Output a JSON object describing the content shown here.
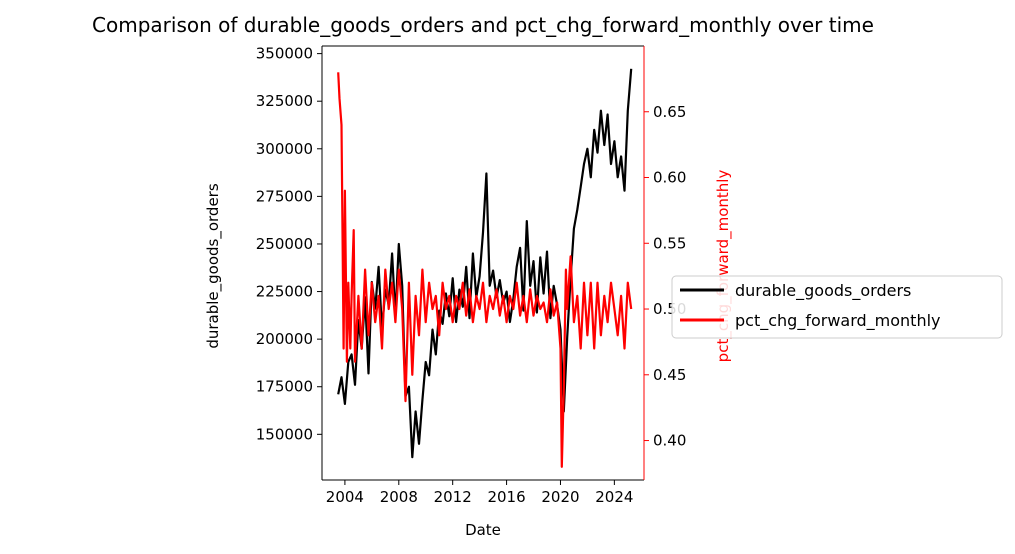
{
  "chart_data": {
    "type": "line",
    "title": "Comparison of durable_goods_orders and pct_chg_forward_monthly over time",
    "xlabel": "Date",
    "ylabel_left": "durable_goods_orders",
    "ylabel_right": "pct_chg_forward_monthly",
    "x_ticks": [
      "2004",
      "2008",
      "2012",
      "2016",
      "2020",
      "2024"
    ],
    "y_left_ticks": [
      "150000",
      "175000",
      "200000",
      "225000",
      "250000",
      "275000",
      "300000",
      "325000",
      "350000"
    ],
    "y_right_ticks": [
      "0.40",
      "0.45",
      "0.50",
      "0.55",
      "0.60",
      "0.65"
    ],
    "x_range": [
      2002.3,
      2026.2
    ],
    "y_left_range": [
      126000,
      354000
    ],
    "y_right_range": [
      0.37,
      0.7
    ],
    "legend_position": "center-right outside",
    "grid": false,
    "colors": {
      "durable_goods_orders": "#000000",
      "pct_chg_forward_monthly": "#ff0000",
      "right_axis": "#ff0000"
    },
    "series": [
      {
        "name": "durable_goods_orders",
        "axis": "left",
        "color": "#000000",
        "x": [
          2003.5,
          2003.75,
          2004.0,
          2004.25,
          2004.5,
          2004.75,
          2005.0,
          2005.25,
          2005.5,
          2005.75,
          2006.0,
          2006.25,
          2006.5,
          2006.75,
          2007.0,
          2007.25,
          2007.5,
          2007.75,
          2008.0,
          2008.25,
          2008.5,
          2008.75,
          2009.0,
          2009.25,
          2009.5,
          2009.75,
          2010.0,
          2010.25,
          2010.5,
          2010.75,
          2011.0,
          2011.25,
          2011.5,
          2011.75,
          2012.0,
          2012.25,
          2012.5,
          2012.75,
          2013.0,
          2013.25,
          2013.5,
          2013.75,
          2014.0,
          2014.25,
          2014.5,
          2014.75,
          2015.0,
          2015.25,
          2015.5,
          2015.75,
          2016.0,
          2016.25,
          2016.5,
          2016.75,
          2017.0,
          2017.25,
          2017.5,
          2017.75,
          2018.0,
          2018.25,
          2018.5,
          2018.75,
          2019.0,
          2019.25,
          2019.5,
          2019.75,
          2020.0,
          2020.25,
          2020.5,
          2020.75,
          2021.0,
          2021.25,
          2021.5,
          2021.75,
          2022.0,
          2022.25,
          2022.5,
          2022.75,
          2023.0,
          2023.25,
          2023.5,
          2023.75,
          2024.0,
          2024.25,
          2024.5,
          2024.75,
          2025.0,
          2025.25
        ],
        "values": [
          171000,
          180000,
          166000,
          188000,
          192000,
          176000,
          210000,
          195000,
          222000,
          182000,
          230000,
          216000,
          238000,
          205000,
          226000,
          218000,
          245000,
          212000,
          250000,
          228000,
          170000,
          175000,
          138000,
          162000,
          145000,
          168000,
          188000,
          181000,
          205000,
          192000,
          215000,
          208000,
          224000,
          212000,
          232000,
          209000,
          226000,
          217000,
          238000,
          211000,
          245000,
          222000,
          233000,
          256000,
          287000,
          228000,
          236000,
          222000,
          231000,
          219000,
          225000,
          209000,
          221000,
          238000,
          248000,
          215000,
          262000,
          228000,
          241000,
          214000,
          243000,
          224000,
          246000,
          211000,
          228000,
          218000,
          205000,
          162000,
          201000,
          232000,
          258000,
          268000,
          280000,
          292000,
          300000,
          285000,
          310000,
          298000,
          320000,
          302000,
          318000,
          292000,
          304000,
          285000,
          296000,
          278000,
          320000,
          342000
        ]
      },
      {
        "name": "pct_chg_forward_monthly",
        "axis": "right",
        "color": "#ff0000",
        "x": [
          2003.5,
          2003.6,
          2003.75,
          2003.9,
          2004.0,
          2004.15,
          2004.25,
          2004.4,
          2004.5,
          2004.65,
          2004.75,
          2005.0,
          2005.25,
          2005.5,
          2005.75,
          2006.0,
          2006.25,
          2006.5,
          2006.75,
          2007.0,
          2007.25,
          2007.5,
          2007.75,
          2008.0,
          2008.25,
          2008.5,
          2008.75,
          2009.0,
          2009.25,
          2009.5,
          2009.75,
          2010.0,
          2010.25,
          2010.5,
          2010.75,
          2011.0,
          2011.25,
          2011.5,
          2011.75,
          2012.0,
          2012.25,
          2012.5,
          2012.75,
          2013.0,
          2013.25,
          2013.5,
          2013.75,
          2014.0,
          2014.25,
          2014.5,
          2014.75,
          2015.0,
          2015.25,
          2015.5,
          2015.75,
          2016.0,
          2016.25,
          2016.5,
          2016.75,
          2017.0,
          2017.25,
          2017.5,
          2017.75,
          2018.0,
          2018.25,
          2018.5,
          2018.75,
          2019.0,
          2019.25,
          2019.5,
          2019.75,
          2020.0,
          2020.1,
          2020.25,
          2020.4,
          2020.5,
          2020.75,
          2021.0,
          2021.25,
          2021.5,
          2021.75,
          2022.0,
          2022.25,
          2022.5,
          2022.75,
          2023.0,
          2023.25,
          2023.5,
          2023.75,
          2024.0,
          2024.25,
          2024.5,
          2024.75,
          2025.0,
          2025.25
        ],
        "values": [
          0.68,
          0.66,
          0.64,
          0.47,
          0.59,
          0.46,
          0.52,
          0.47,
          0.51,
          0.56,
          0.46,
          0.51,
          0.47,
          0.53,
          0.48,
          0.52,
          0.49,
          0.51,
          0.47,
          0.53,
          0.5,
          0.52,
          0.49,
          0.53,
          0.5,
          0.43,
          0.52,
          0.45,
          0.51,
          0.48,
          0.53,
          0.49,
          0.52,
          0.5,
          0.51,
          0.48,
          0.52,
          0.5,
          0.51,
          0.49,
          0.51,
          0.5,
          0.52,
          0.495,
          0.515,
          0.49,
          0.51,
          0.5,
          0.52,
          0.49,
          0.51,
          0.5,
          0.515,
          0.495,
          0.51,
          0.49,
          0.51,
          0.5,
          0.52,
          0.495,
          0.51,
          0.49,
          0.515,
          0.495,
          0.51,
          0.5,
          0.505,
          0.49,
          0.515,
          0.495,
          0.505,
          0.47,
          0.38,
          0.44,
          0.53,
          0.5,
          0.54,
          0.49,
          0.51,
          0.47,
          0.52,
          0.48,
          0.52,
          0.47,
          0.52,
          0.48,
          0.51,
          0.49,
          0.52,
          0.5,
          0.48,
          0.51,
          0.47,
          0.52,
          0.5
        ]
      }
    ]
  }
}
